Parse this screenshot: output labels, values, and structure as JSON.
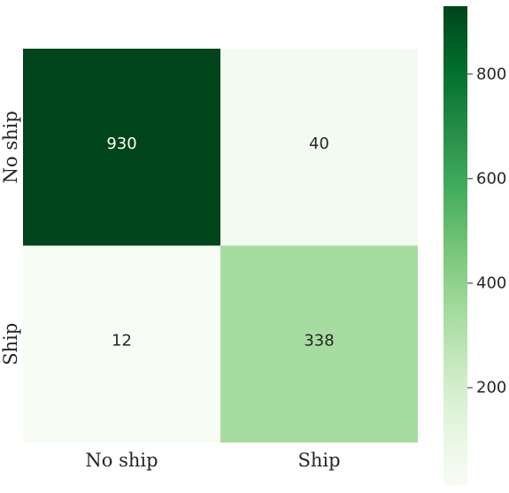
{
  "chart_data": {
    "type": "heatmap",
    "title": "",
    "xlabel": "",
    "ylabel": "",
    "x_categories": [
      "No ship",
      "Ship"
    ],
    "y_categories": [
      "No ship",
      "Ship"
    ],
    "values": [
      [
        930,
        40
      ],
      [
        12,
        338
      ]
    ],
    "colormap": "Greens",
    "colors": {
      "low": "#f7fcf5",
      "high": "#00441b"
    },
    "colorbar": {
      "range": [
        12,
        930
      ],
      "ticks": [
        200,
        400,
        600,
        800
      ],
      "tick_labels": [
        "200",
        "400",
        "600",
        "800"
      ],
      "placement": "right"
    }
  }
}
